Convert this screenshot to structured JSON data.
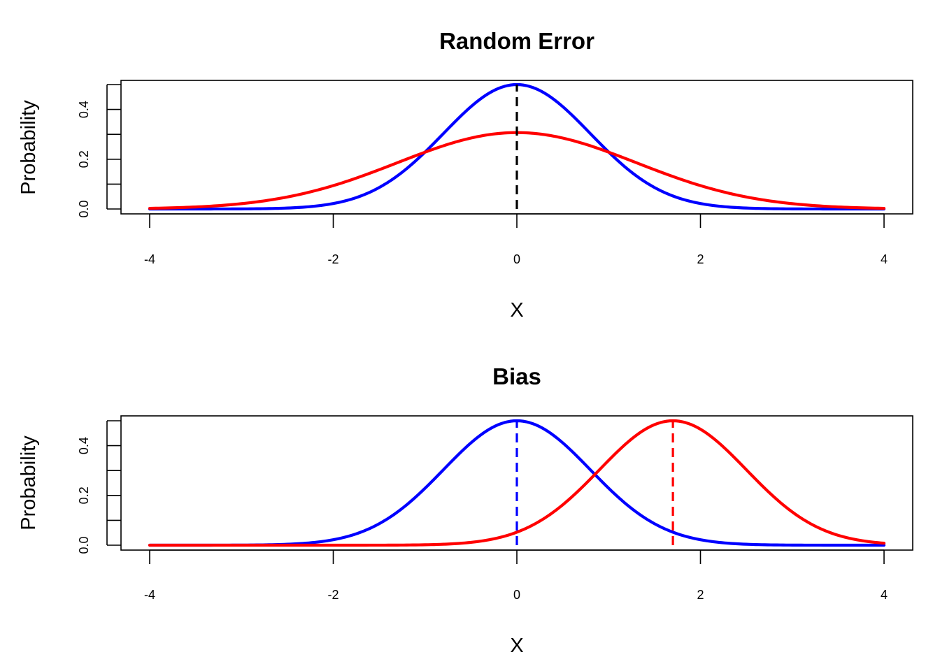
{
  "colors": {
    "blue": "#0000ff",
    "red": "#ff0000",
    "black": "#000000"
  },
  "chart_data": [
    {
      "type": "line",
      "title": "Random Error",
      "xlabel": "X",
      "ylabel": "Probability",
      "xlim": [
        -4,
        4
      ],
      "ylim": [
        0,
        0.5
      ],
      "xticks": [
        "-4",
        "-2",
        "0",
        "2",
        "4"
      ],
      "yticks": [
        "0.0",
        "0.2",
        "0.4"
      ],
      "grid": false,
      "series": [
        {
          "color": "blue",
          "style": "solid",
          "distribution": "normal-curve",
          "mean": 0,
          "sd": 0.8,
          "x": [
            -4,
            -3.5,
            -3,
            -2.5,
            -2,
            -1.5,
            -1,
            -0.5,
            0,
            0.5,
            1,
            1.5,
            2,
            2.5,
            3,
            3.5,
            4
          ],
          "y": [
            0.0,
            0.0,
            0.001,
            0.008,
            0.022,
            0.086,
            0.229,
            0.411,
            0.5,
            0.411,
            0.229,
            0.086,
            0.022,
            0.008,
            0.001,
            0.0,
            0.0
          ]
        },
        {
          "color": "red",
          "style": "solid",
          "distribution": "normal-curve",
          "mean": 0,
          "sd": 1.3,
          "x": [
            -4,
            -3.5,
            -3,
            -2.5,
            -2,
            -1.5,
            -1,
            -0.5,
            0,
            0.5,
            1,
            1.5,
            2,
            2.5,
            3,
            3.5,
            4
          ],
          "y": [
            0.003,
            0.008,
            0.021,
            0.047,
            0.094,
            0.156,
            0.226,
            0.283,
            0.307,
            0.283,
            0.226,
            0.156,
            0.094,
            0.047,
            0.021,
            0.008,
            0.003
          ]
        }
      ],
      "reference_lines": [
        {
          "x": 0,
          "color": "black",
          "style": "dashed"
        }
      ]
    },
    {
      "type": "line",
      "title": "Bias",
      "xlabel": "X",
      "ylabel": "Probability",
      "xlim": [
        -4,
        4
      ],
      "ylim": [
        0,
        0.5
      ],
      "xticks": [
        "-4",
        "-2",
        "0",
        "2",
        "4"
      ],
      "yticks": [
        "0.0",
        "0.2",
        "0.4"
      ],
      "grid": false,
      "series": [
        {
          "color": "blue",
          "style": "solid",
          "distribution": "normal-curve",
          "mean": 0,
          "sd": 0.8,
          "x": [
            -4,
            -3,
            -2,
            -1.5,
            -1,
            -0.5,
            0,
            0.5,
            1,
            1.5,
            2,
            3,
            4
          ],
          "y": [
            0.0,
            0.001,
            0.022,
            0.086,
            0.229,
            0.411,
            0.5,
            0.411,
            0.229,
            0.086,
            0.022,
            0.001,
            0.0
          ]
        },
        {
          "color": "red",
          "style": "solid",
          "distribution": "normal-curve",
          "mean": 1.7,
          "sd": 0.8,
          "x": [
            -4,
            -2,
            -1,
            0,
            0.5,
            1,
            1.5,
            1.7,
            2,
            2.5,
            3,
            3.5,
            4
          ],
          "y": [
            0.0,
            0.0,
            0.002,
            0.052,
            0.162,
            0.341,
            0.485,
            0.5,
            0.466,
            0.303,
            0.133,
            0.04,
            0.008
          ]
        }
      ],
      "reference_lines": [
        {
          "x": 0,
          "color": "blue",
          "style": "dashed"
        },
        {
          "x": 1.7,
          "color": "red",
          "style": "dashed"
        }
      ]
    }
  ]
}
